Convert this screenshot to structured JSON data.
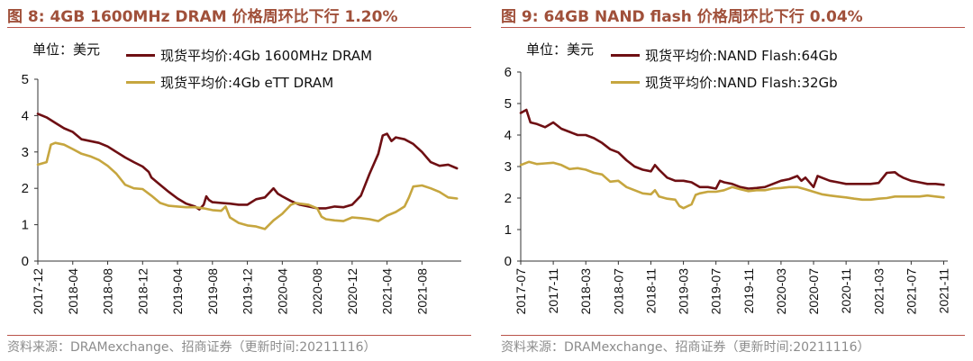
{
  "chart_data": [
    {
      "type": "line",
      "title": "图 8:  4GB 1600MHz DRAM 价格周环比下行 1.20%",
      "unit": "单位：美元",
      "source": "资料来源：DRAMexchange、招商证券（更新时间:20211116）",
      "ylim": [
        0,
        5
      ],
      "yticks": [
        "0",
        "1",
        "2",
        "3",
        "4",
        "5"
      ],
      "xlim": [
        0,
        48.5
      ],
      "xticks": [
        {
          "label": "2017-12",
          "t": 0
        },
        {
          "label": "2018-04",
          "t": 4
        },
        {
          "label": "2018-08",
          "t": 8
        },
        {
          "label": "2018-12",
          "t": 12
        },
        {
          "label": "2019-04",
          "t": 16
        },
        {
          "label": "2019-08",
          "t": 20
        },
        {
          "label": "2019-12",
          "t": 24
        },
        {
          "label": "2020-04",
          "t": 28
        },
        {
          "label": "2020-08",
          "t": 32
        },
        {
          "label": "2020-12",
          "t": 36
        },
        {
          "label": "2021-04",
          "t": 40
        },
        {
          "label": "2021-08",
          "t": 44
        }
      ],
      "series": [
        {
          "name": "现货平均价:4Gb 1600MHz DRAM",
          "color": "#6e0f13",
          "points": [
            [
              0,
              4.05
            ],
            [
              1,
              3.95
            ],
            [
              2,
              3.8
            ],
            [
              3,
              3.65
            ],
            [
              4,
              3.55
            ],
            [
              4.5,
              3.45
            ],
            [
              5,
              3.35
            ],
            [
              6,
              3.3
            ],
            [
              7,
              3.25
            ],
            [
              8,
              3.15
            ],
            [
              9,
              3.0
            ],
            [
              10,
              2.85
            ],
            [
              11,
              2.72
            ],
            [
              12,
              2.6
            ],
            [
              12.7,
              2.45
            ],
            [
              13,
              2.3
            ],
            [
              14,
              2.1
            ],
            [
              15,
              1.9
            ],
            [
              16,
              1.72
            ],
            [
              17,
              1.58
            ],
            [
              18,
              1.5
            ],
            [
              18.5,
              1.42
            ],
            [
              19,
              1.55
            ],
            [
              19.3,
              1.78
            ],
            [
              19.6,
              1.68
            ],
            [
              20,
              1.62
            ],
            [
              21,
              1.6
            ],
            [
              22,
              1.58
            ],
            [
              23,
              1.55
            ],
            [
              24,
              1.55
            ],
            [
              25,
              1.7
            ],
            [
              26,
              1.75
            ],
            [
              27,
              2.0
            ],
            [
              27.5,
              1.85
            ],
            [
              28,
              1.78
            ],
            [
              29,
              1.65
            ],
            [
              30,
              1.55
            ],
            [
              31,
              1.5
            ],
            [
              32,
              1.45
            ],
            [
              33,
              1.45
            ],
            [
              34,
              1.5
            ],
            [
              35,
              1.48
            ],
            [
              36,
              1.55
            ],
            [
              37,
              1.8
            ],
            [
              38,
              2.4
            ],
            [
              39,
              2.95
            ],
            [
              39.5,
              3.45
            ],
            [
              40,
              3.5
            ],
            [
              40.5,
              3.3
            ],
            [
              41,
              3.4
            ],
            [
              42,
              3.35
            ],
            [
              43,
              3.22
            ],
            [
              44,
              3.0
            ],
            [
              45,
              2.72
            ],
            [
              46,
              2.62
            ],
            [
              47,
              2.65
            ],
            [
              48,
              2.55
            ]
          ]
        },
        {
          "name": "现货平均价:4Gb eTT DRAM",
          "color": "#c6a63f",
          "points": [
            [
              0,
              2.65
            ],
            [
              1,
              2.72
            ],
            [
              1.5,
              3.2
            ],
            [
              2,
              3.25
            ],
            [
              3,
              3.2
            ],
            [
              4,
              3.08
            ],
            [
              5,
              2.95
            ],
            [
              6,
              2.88
            ],
            [
              7,
              2.78
            ],
            [
              8,
              2.62
            ],
            [
              9,
              2.4
            ],
            [
              10,
              2.1
            ],
            [
              11,
              2.0
            ],
            [
              12,
              1.98
            ],
            [
              13,
              1.8
            ],
            [
              14,
              1.6
            ],
            [
              15,
              1.52
            ],
            [
              16,
              1.5
            ],
            [
              17,
              1.48
            ],
            [
              18,
              1.48
            ],
            [
              19,
              1.45
            ],
            [
              20,
              1.4
            ],
            [
              21,
              1.38
            ],
            [
              21.5,
              1.5
            ],
            [
              22,
              1.2
            ],
            [
              23,
              1.05
            ],
            [
              24,
              0.98
            ],
            [
              25,
              0.95
            ],
            [
              26,
              0.88
            ],
            [
              27,
              1.12
            ],
            [
              28,
              1.3
            ],
            [
              29,
              1.55
            ],
            [
              29.5,
              1.6
            ],
            [
              30,
              1.58
            ],
            [
              31,
              1.55
            ],
            [
              32,
              1.45
            ],
            [
              32.5,
              1.22
            ],
            [
              33,
              1.15
            ],
            [
              34,
              1.12
            ],
            [
              35,
              1.1
            ],
            [
              36,
              1.2
            ],
            [
              37,
              1.18
            ],
            [
              38,
              1.15
            ],
            [
              39,
              1.1
            ],
            [
              40,
              1.25
            ],
            [
              41,
              1.35
            ],
            [
              42,
              1.5
            ],
            [
              42.5,
              1.75
            ],
            [
              43,
              2.05
            ],
            [
              44,
              2.08
            ],
            [
              45,
              2.0
            ],
            [
              46,
              1.9
            ],
            [
              47,
              1.75
            ],
            [
              48,
              1.72
            ]
          ]
        }
      ]
    },
    {
      "type": "line",
      "title": "图 9:  64GB NAND flash 价格周环比下行 0.04%",
      "unit": "单位：美元",
      "source": "资料来源：DRAMexchange、招商证券（更新时间:20211116）",
      "ylim": [
        0,
        6
      ],
      "yticks": [
        "0",
        "1",
        "2",
        "3",
        "4",
        "5",
        "6"
      ],
      "xlim": [
        0,
        52.5
      ],
      "xticks": [
        {
          "label": "2017-07",
          "t": 0
        },
        {
          "label": "2017-11",
          "t": 4
        },
        {
          "label": "2018-03",
          "t": 8
        },
        {
          "label": "2018-07",
          "t": 12
        },
        {
          "label": "2018-11",
          "t": 16
        },
        {
          "label": "2019-03",
          "t": 20
        },
        {
          "label": "2019-07",
          "t": 24
        },
        {
          "label": "2019-11",
          "t": 28
        },
        {
          "label": "2020-03",
          "t": 32
        },
        {
          "label": "2020-07",
          "t": 36
        },
        {
          "label": "2020-11",
          "t": 40
        },
        {
          "label": "2021-03",
          "t": 44
        },
        {
          "label": "2021-07",
          "t": 48
        },
        {
          "label": "2021-11",
          "t": 52
        }
      ],
      "series": [
        {
          "name": "现货平均价:NAND Flash:64Gb",
          "color": "#6e0f13",
          "points": [
            [
              0,
              4.7
            ],
            [
              0.7,
              4.8
            ],
            [
              1.2,
              4.4
            ],
            [
              2,
              4.35
            ],
            [
              3,
              4.25
            ],
            [
              4,
              4.4
            ],
            [
              5,
              4.2
            ],
            [
              6,
              4.1
            ],
            [
              7,
              4.0
            ],
            [
              8,
              4.0
            ],
            [
              9,
              3.9
            ],
            [
              10,
              3.75
            ],
            [
              11,
              3.55
            ],
            [
              12,
              3.45
            ],
            [
              13,
              3.2
            ],
            [
              14,
              3.0
            ],
            [
              15,
              2.9
            ],
            [
              16,
              2.85
            ],
            [
              16.5,
              3.05
            ],
            [
              17,
              2.9
            ],
            [
              18,
              2.65
            ],
            [
              19,
              2.55
            ],
            [
              20,
              2.55
            ],
            [
              21,
              2.5
            ],
            [
              22,
              2.35
            ],
            [
              23,
              2.35
            ],
            [
              24,
              2.3
            ],
            [
              24.5,
              2.55
            ],
            [
              25,
              2.5
            ],
            [
              26,
              2.45
            ],
            [
              27,
              2.35
            ],
            [
              28,
              2.3
            ],
            [
              29,
              2.32
            ],
            [
              30,
              2.35
            ],
            [
              31,
              2.45
            ],
            [
              32,
              2.55
            ],
            [
              33,
              2.6
            ],
            [
              34,
              2.7
            ],
            [
              34.5,
              2.55
            ],
            [
              35,
              2.65
            ],
            [
              36,
              2.35
            ],
            [
              36.5,
              2.7
            ],
            [
              37,
              2.65
            ],
            [
              38,
              2.55
            ],
            [
              39,
              2.5
            ],
            [
              40,
              2.45
            ],
            [
              41,
              2.45
            ],
            [
              42,
              2.45
            ],
            [
              43,
              2.45
            ],
            [
              44,
              2.48
            ],
            [
              45,
              2.8
            ],
            [
              46,
              2.82
            ],
            [
              46.5,
              2.72
            ],
            [
              47,
              2.65
            ],
            [
              48,
              2.55
            ],
            [
              49,
              2.5
            ],
            [
              50,
              2.45
            ],
            [
              51,
              2.45
            ],
            [
              52,
              2.42
            ]
          ]
        },
        {
          "name": "现货平均价:NAND Flash:32Gb",
          "color": "#c6a63f",
          "points": [
            [
              0,
              3.05
            ],
            [
              1,
              3.15
            ],
            [
              2,
              3.08
            ],
            [
              3,
              3.1
            ],
            [
              4,
              3.12
            ],
            [
              5,
              3.05
            ],
            [
              6,
              2.92
            ],
            [
              7,
              2.95
            ],
            [
              8,
              2.9
            ],
            [
              9,
              2.8
            ],
            [
              10,
              2.75
            ],
            [
              11,
              2.52
            ],
            [
              12,
              2.55
            ],
            [
              13,
              2.35
            ],
            [
              14,
              2.25
            ],
            [
              15,
              2.15
            ],
            [
              16,
              2.12
            ],
            [
              16.5,
              2.25
            ],
            [
              17,
              2.05
            ],
            [
              18,
              1.98
            ],
            [
              19,
              1.95
            ],
            [
              19.5,
              1.75
            ],
            [
              20,
              1.68
            ],
            [
              21,
              1.8
            ],
            [
              21.5,
              2.1
            ],
            [
              22,
              2.15
            ],
            [
              23,
              2.2
            ],
            [
              24,
              2.2
            ],
            [
              25,
              2.25
            ],
            [
              26,
              2.35
            ],
            [
              27,
              2.28
            ],
            [
              28,
              2.22
            ],
            [
              29,
              2.25
            ],
            [
              30,
              2.25
            ],
            [
              31,
              2.3
            ],
            [
              32,
              2.32
            ],
            [
              33,
              2.35
            ],
            [
              34,
              2.35
            ],
            [
              35,
              2.28
            ],
            [
              36,
              2.2
            ],
            [
              37,
              2.12
            ],
            [
              38,
              2.08
            ],
            [
              39,
              2.05
            ],
            [
              40,
              2.02
            ],
            [
              41,
              1.98
            ],
            [
              42,
              1.95
            ],
            [
              43,
              1.95
            ],
            [
              44,
              1.98
            ],
            [
              45,
              2.0
            ],
            [
              46,
              2.05
            ],
            [
              47,
              2.05
            ],
            [
              48,
              2.05
            ],
            [
              49,
              2.05
            ],
            [
              50,
              2.08
            ],
            [
              51,
              2.05
            ],
            [
              52,
              2.02
            ]
          ]
        }
      ]
    }
  ]
}
